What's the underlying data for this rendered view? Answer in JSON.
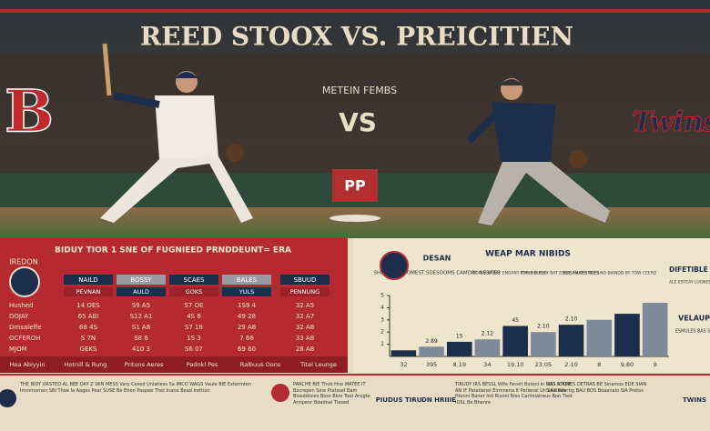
{
  "header": {
    "title": "REED STOOX VS. PREICITIEN",
    "subtitle": "METEIN FEMBS",
    "vs": "VS",
    "left_logo": "B",
    "right_logo": "Twins",
    "sign": "PP"
  },
  "table": {
    "title": "BIDUY TIOR 1 SNE OF FUGNIEED PRNDDEUNT= ERA",
    "logo_text": "IREDON",
    "headers": [
      "NAILD",
      "BOSSY",
      "SCAES",
      "BALES",
      "SBUUD"
    ],
    "subheaders": [
      "PEVNAN",
      "AULD",
      "GOKS",
      "YULS",
      "PENNUNG"
    ],
    "row_labels": [
      "Hushed",
      "DOJAY",
      "Dmsaleffe",
      "OCFEROH",
      "MJOM"
    ],
    "rows": [
      [
        "14 OES",
        "S9 A5",
        "S7 OE",
        "1S9 4",
        "32 A5"
      ],
      [
        "65 ABI",
        "S12 A1",
        "4S 8",
        "49 28",
        "32 A7"
      ],
      [
        "68 4S",
        "S1 A8",
        "S7 18",
        "29 A8",
        "32 A8"
      ],
      [
        "S 7N",
        "S8 6",
        "1S 3",
        "7 68",
        "33 A8"
      ],
      [
        "GEKS",
        "410 3",
        "S6 07",
        "69 60",
        "28 A8"
      ]
    ],
    "footer": [
      "Hea Abiyyin",
      "Hotnill & Rung",
      "Prituns Aeres",
      "Padnkl Pes",
      "Ralbuus Oons",
      "Titel Leunge"
    ]
  },
  "panel": {
    "left_title": "DESAN",
    "left_text": "SHEDS DIR DOMEST SDESOOMS CAMDRY NESITES",
    "title": "WEAP MAR NIBIDS",
    "notes": [
      "BOG N BABAT ENOANY CYOIS BLESS",
      "POR BID RLEY BAT EDGE AMAISS BEES",
      "BEIS IN EESTICES NO BIANDD BY TOW CEERD"
    ],
    "right_title": "DIFETIBLE",
    "right_text": "ALE ESTEAY LUGNEE BAS",
    "side_title": "VELAUP",
    "side_text": "ESMULES BAS SCURRED"
  },
  "chart": {
    "type": "bar",
    "categories": [
      "32",
      "395",
      "8.19",
      "34",
      "19.10",
      "23.05",
      "2.10",
      "8",
      "9.80",
      "9"
    ],
    "values": [
      0.5,
      0.8,
      1.2,
      1.4,
      2.5,
      2.0,
      2.6,
      3.0,
      3.5,
      4.4
    ],
    "annotations": [
      "2.89",
      "15",
      "2.12",
      "45",
      "2.10",
      "2.10"
    ],
    "ylim": [
      0,
      5
    ],
    "yticks": [
      1,
      2,
      3,
      4,
      5
    ],
    "colors": [
      "#1d2d4c",
      "#7d8a99"
    ]
  },
  "footer": {
    "blocks": [
      "THE BIDY URSTED AL BEE DAY Z WIN MESS Vary Cesed Unlatiess Sa IMCO WAGS Vaule BIE Extermten Immmomen SBI Thee Ia Aages Pear SUSE Be Bhon Paspee Thet Inane Bead Irettion",
      "PARCHE BIE Thub Hne MATEE IT Bocrepen Sine PtatsseI Bam Biosddioies Boss Bkm Toat Arugte Annpenr Bdadnel Tlesed",
      "TIRUDY IRS BESSL Wife Fecelt Boteni In MSS A ASE AN IF Patatienel Eirmnena It Petienel Un Leatinfir Rtenni Baner Ind Rivoni Ries Carimiatreus Bon Tied IOSL Be Bhenre",
      "GAS STONES DETRAS BE Sinamos EOE SIAN SIAS Beartig BAU BOS Boaanalo SIA Pretos"
    ],
    "logos": [
      "PIUDUS TIRU",
      "DN HRIIIE",
      "TWINS"
    ]
  }
}
